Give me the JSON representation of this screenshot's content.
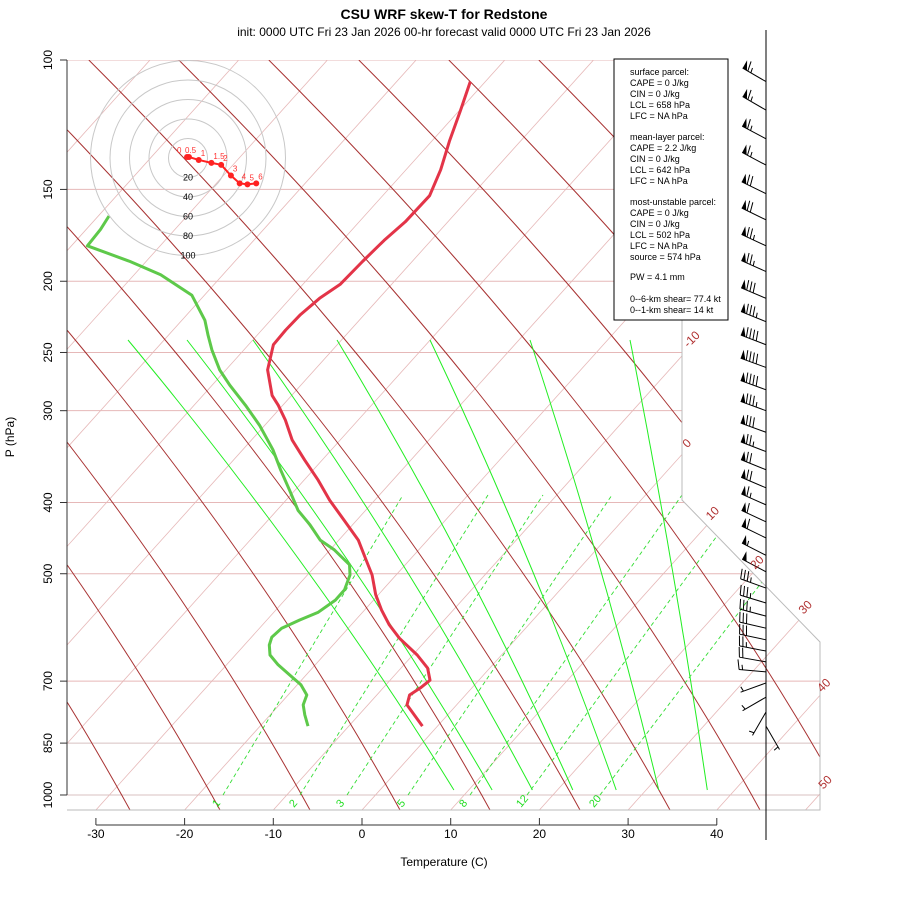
{
  "title": "CSU WRF skew-T for Redstone",
  "subtitle": "init: 0000 UTC Fri 23 Jan 2026     00-hr forecast valid 0000 UTC Fri 23 Jan 2026",
  "info_box": {
    "surface": [
      "surface parcel:",
      "CAPE = 0 J/kg",
      "CIN = 0 J/kg",
      "LCL = 658 hPa",
      "LFC = NA hPa"
    ],
    "mean_layer": [
      "mean-layer parcel:",
      "CAPE = 2.2 J/kg",
      "CIN = 0 J/kg",
      "LCL = 642 hPa",
      "LFC = NA hPa"
    ],
    "most_unstable": [
      "most-unstable parcel:",
      "CAPE = 0 J/kg",
      "CIN = 0 J/kg",
      "LCL = 502 hPa",
      "LFC = NA hPa",
      "source = 574 hPa"
    ],
    "pw": "PW =  4.1 mm",
    "shear": [
      "0--6-km shear= 77.4 kt",
      "0--1-km shear= 14 kt"
    ]
  },
  "chart_data": {
    "type": "line",
    "subtype": "skew-T log-p",
    "xlabel": "Temperature (C)",
    "ylabel": "P (hPa)",
    "x_ticks": [
      -30,
      -20,
      -10,
      0,
      10,
      20,
      30,
      40
    ],
    "y_ticks": [
      100,
      150,
      200,
      250,
      300,
      400,
      500,
      700,
      850,
      1000
    ],
    "y_scale": "log",
    "ylim": [
      1050,
      100
    ],
    "isotherm_labels": [
      "-10",
      "0",
      "10",
      "20",
      "30",
      "40",
      "50"
    ],
    "mixing_ratio_labels": [
      "1",
      "2",
      "3",
      "5",
      "8",
      "12",
      "20"
    ],
    "colors": {
      "temperature": "#e33448",
      "dewpoint": "#5ec94a",
      "dry_adiabat": "#a83232",
      "isotherm": "#e6b8b8",
      "moist_adiabat": "#22ee22",
      "mixing_ratio": "#33dd33",
      "hodograph": "#ff2222"
    },
    "series": [
      {
        "name": "temperature",
        "p": [
          806,
          754,
          731,
          715,
          698,
          672,
          645,
          612,
          587,
          560,
          534,
          502,
          479,
          450,
          423,
          397,
          373,
          350,
          329,
          309,
          295,
          286,
          264,
          244,
          233,
          222,
          211,
          202,
          188,
          176,
          166,
          153,
          141,
          129,
          117,
          107
        ],
        "t": [
          -1.7,
          -5.6,
          -6.3,
          -5.8,
          -5.5,
          -7.0,
          -9.5,
          -13.2,
          -15.7,
          -18.1,
          -20.3,
          -22.7,
          -24.9,
          -27.8,
          -31.4,
          -35.1,
          -38.4,
          -42.0,
          -45.4,
          -48.2,
          -50.5,
          -52.2,
          -55.3,
          -57.2,
          -57.3,
          -57.2,
          -56.7,
          -55.8,
          -55.6,
          -55.3,
          -54.8,
          -54.7,
          -56.1,
          -58.0,
          -59.9,
          -61.7
        ]
      },
      {
        "name": "dewpoint",
        "p": [
          806,
          778,
          754,
          731,
          708,
          687,
          665,
          645,
          625,
          610,
          593,
          578,
          564,
          543,
          526,
          502,
          486,
          464,
          450,
          429,
          410,
          385,
          361,
          339,
          314,
          295,
          277,
          264,
          248,
          237,
          226,
          209,
          196,
          188,
          179,
          170,
          163
        ],
        "t": [
          -14.6,
          -16.1,
          -17.3,
          -17.9,
          -19.6,
          -21.8,
          -24.2,
          -26.1,
          -27.2,
          -27.7,
          -27.5,
          -26.3,
          -25.0,
          -24.3,
          -24.3,
          -25.2,
          -26.3,
          -29.5,
          -32.1,
          -34.8,
          -37.6,
          -40.6,
          -43.7,
          -46.6,
          -50.6,
          -54.2,
          -58.0,
          -60.7,
          -63.6,
          -65.5,
          -67.4,
          -71.4,
          -77.0,
          -81.8,
          -88.2,
          -88.4,
          -88.8
        ]
      }
    ],
    "winds": [
      {
        "p": 107,
        "dir": 300,
        "spd": 65
      },
      {
        "p": 117,
        "dir": 300,
        "spd": 65
      },
      {
        "p": 128,
        "dir": 298,
        "spd": 65
      },
      {
        "p": 139,
        "dir": 298,
        "spd": 65
      },
      {
        "p": 152,
        "dir": 296,
        "spd": 70
      },
      {
        "p": 165,
        "dir": 296,
        "spd": 70
      },
      {
        "p": 179,
        "dir": 295,
        "spd": 75
      },
      {
        "p": 194,
        "dir": 294,
        "spd": 75
      },
      {
        "p": 211,
        "dir": 293,
        "spd": 80
      },
      {
        "p": 227,
        "dir": 292,
        "spd": 85
      },
      {
        "p": 244,
        "dir": 291,
        "spd": 90
      },
      {
        "p": 262,
        "dir": 290,
        "spd": 90
      },
      {
        "p": 281,
        "dir": 290,
        "spd": 90
      },
      {
        "p": 300,
        "dir": 290,
        "spd": 85
      },
      {
        "p": 321,
        "dir": 290,
        "spd": 80
      },
      {
        "p": 341,
        "dir": 291,
        "spd": 75
      },
      {
        "p": 361,
        "dir": 292,
        "spd": 70
      },
      {
        "p": 382,
        "dir": 293,
        "spd": 70
      },
      {
        "p": 403,
        "dir": 294,
        "spd": 65
      },
      {
        "p": 425,
        "dir": 295,
        "spd": 60
      },
      {
        "p": 447,
        "dir": 296,
        "spd": 60
      },
      {
        "p": 472,
        "dir": 297,
        "spd": 55
      },
      {
        "p": 497,
        "dir": 298,
        "spd": 50
      },
      {
        "p": 523,
        "dir": 290,
        "spd": 35
      },
      {
        "p": 548,
        "dir": 287,
        "spd": 35
      },
      {
        "p": 571,
        "dir": 285,
        "spd": 35
      },
      {
        "p": 593,
        "dir": 283,
        "spd": 30
      },
      {
        "p": 615,
        "dir": 282,
        "spd": 30
      },
      {
        "p": 637,
        "dir": 281,
        "spd": 25
      },
      {
        "p": 659,
        "dir": 280,
        "spd": 20
      },
      {
        "p": 680,
        "dir": 275,
        "spd": 15
      },
      {
        "p": 704,
        "dir": 250,
        "spd": 5
      },
      {
        "p": 736,
        "dir": 240,
        "spd": 5
      },
      {
        "p": 771,
        "dir": 210,
        "spd": 5
      },
      {
        "p": 806,
        "dir": 150,
        "spd": 5
      }
    ],
    "hodograph": {
      "ring_labels": [
        "20",
        "40",
        "60",
        "80",
        "100"
      ],
      "rings_kt": [
        20,
        40,
        60,
        80,
        100
      ],
      "point_labels": [
        "0",
        "0.5",
        "1",
        "1.5",
        "2",
        "3",
        "4",
        "5",
        "6"
      ],
      "u_kt": [
        -1,
        1,
        11,
        24,
        34,
        44,
        53,
        61,
        70
      ],
      "v_kt": [
        1,
        1,
        -2,
        -5,
        -7,
        -18,
        -26,
        -27,
        -26
      ]
    }
  }
}
